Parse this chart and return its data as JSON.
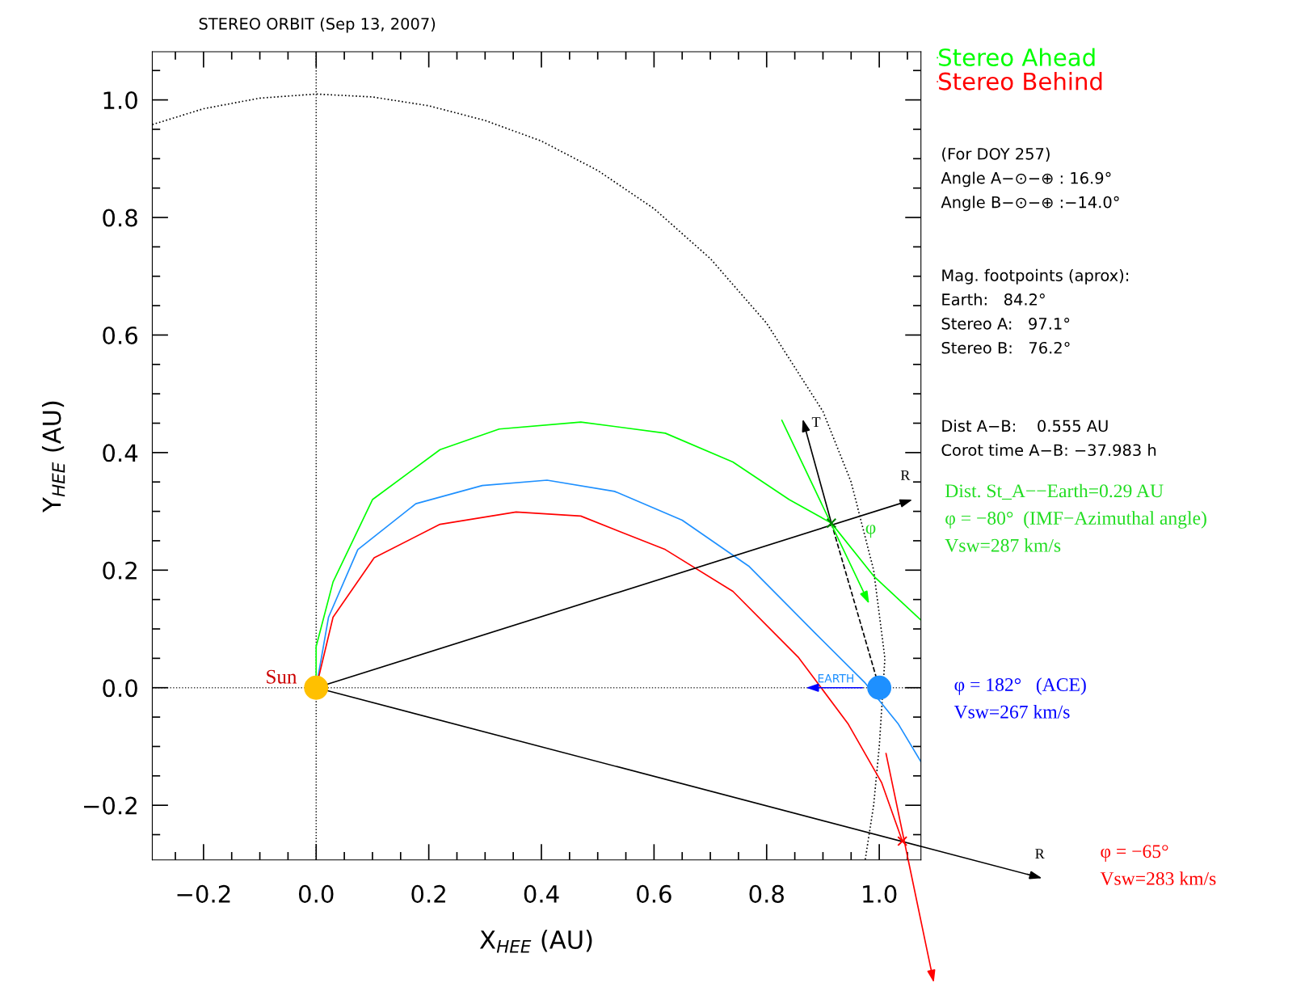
{
  "chart_data": {
    "type": "line",
    "title": "STEREO ORBIT (Sep 13, 2007)",
    "xlabel": "X$_{HEE}$ (AU)",
    "ylabel": "Y$_{HEE}$ (AU)",
    "xlim": [
      -0.291,
      1.074
    ],
    "ylim": [
      -0.293,
      1.082
    ],
    "xticks": [
      {
        "value": -0.2,
        "label": "−0.2"
      },
      {
        "value": 0,
        "label": "0.0"
      },
      0.2,
      0.4,
      0.6,
      0.8,
      {
        "value": 1,
        "label": "1.0"
      }
    ],
    "yticks": [
      {
        "value": -0.2,
        "label": "−0.2"
      },
      {
        "value": 0,
        "label": "0.0"
      },
      0.2,
      0.4,
      0.6,
      0.8,
      {
        "value": 1,
        "label": "1.0"
      }
    ],
    "grid": false,
    "legend": "top right",
    "ref_lines": [
      {
        "axis": "x",
        "value": 0.0,
        "color": "#000000",
        "line_style": "dotted"
      },
      {
        "axis": "y",
        "value": 0.0,
        "color": "#404040",
        "line_style": "dotted"
      }
    ],
    "series": [
      {
        "color": "#000000",
        "line_style": "dotted",
        "x": [
          -0.291,
          -0.2,
          -0.1,
          0.0,
          0.1,
          0.2,
          0.3,
          0.4,
          0.5,
          0.6,
          0.7,
          0.8,
          0.9,
          0.95,
          0.99,
          1.01,
          1.0,
          0.99,
          0.975
        ],
        "values": [
          0.958,
          0.985,
          1.003,
          1.01,
          1.005,
          0.99,
          0.965,
          0.93,
          0.88,
          0.815,
          0.73,
          0.62,
          0.47,
          0.35,
          0.2,
          0.05,
          -0.1,
          -0.2,
          -0.293
        ]
      },
      {
        "name": "Stereo Ahead",
        "color": "#00ff00",
        "x": [
          0.0,
          0.0,
          0.03,
          0.1,
          0.22,
          0.325,
          0.47,
          0.62,
          0.74,
          0.84,
          0.915,
          0.99,
          1.074
        ],
        "values": [
          0.0,
          0.07,
          0.18,
          0.32,
          0.405,
          0.44,
          0.452,
          0.433,
          0.384,
          0.32,
          0.28,
          0.19,
          0.115
        ]
      },
      {
        "color": "#1e90ff",
        "x": [
          0.0,
          0.022,
          0.074,
          0.177,
          0.295,
          0.41,
          0.53,
          0.65,
          0.768,
          0.886,
          0.975,
          1.034,
          1.074
        ],
        "values": [
          0.0,
          0.12,
          0.235,
          0.313,
          0.344,
          0.353,
          0.334,
          0.285,
          0.207,
          0.093,
          0.008,
          -0.062,
          -0.126
        ]
      },
      {
        "name": "Stereo Behind",
        "color": "#ff0000",
        "x": [
          0.0,
          0.03,
          0.103,
          0.22,
          0.355,
          0.47,
          0.62,
          0.74,
          0.857,
          0.945,
          1.004,
          1.041
        ],
        "values": [
          0.0,
          0.12,
          0.221,
          0.278,
          0.299,
          0.292,
          0.235,
          0.164,
          0.051,
          -0.062,
          -0.161,
          -0.261
        ]
      },
      {
        "color": "#000000",
        "x": [
          0.0,
          1.059
        ],
        "values": [
          0.0,
          0.32
        ]
      },
      {
        "color": "#000000",
        "x": [
          0.0,
          1.074
        ],
        "values": [
          0.0,
          -0.27
        ]
      },
      {
        "color": "#000000",
        "x": [
          0.915,
          0.864
        ],
        "values": [
          0.28,
          0.457
        ]
      },
      {
        "color": "#00ff00",
        "x": [
          0.827,
          0.982
        ],
        "values": [
          0.455,
          0.143
        ]
      },
      {
        "color": "#000000",
        "line_style": "dashed",
        "x": [
          0.915,
          1.0
        ],
        "values": [
          0.28,
          0.0
        ]
      },
      {
        "color": "#ff0000",
        "x": [
          1.012,
          1.0514
        ],
        "values": [
          -0.112,
          -0.293
        ]
      },
      {
        "color": "#0000ff",
        "x": [
          0.97,
          0.87
        ],
        "values": [
          0.0,
          0.0
        ]
      },
      {
        "type": "scatter",
        "marker": "circle",
        "color": "#ffc000",
        "x": [
          0.0
        ],
        "values": [
          0.0
        ]
      },
      {
        "type": "scatter",
        "marker": "circle",
        "color": "#1e90ff",
        "x": [
          1.0
        ],
        "values": [
          0.0
        ]
      },
      {
        "type": "scatter",
        "marker": "cross",
        "color": "#008000",
        "x": [
          0.915
        ],
        "values": [
          0.28
        ]
      },
      {
        "type": "scatter",
        "marker": "cross",
        "color": "#ff0000",
        "x": [
          1.041
        ],
        "values": [
          -0.261
        ]
      }
    ],
    "annotations": [
      "(For DOY 257)\nAngle A−⊙−⊕ : 16.9°\nAngle B−⊙−⊕ :−14.0°",
      "Mag. footpoints (aprox):\nEarth:   84.2°\nStereo A:   97.1°\nStereo B:   76.2°",
      "Dist A−B:    0.555 AU\nCorot time A−B: −37.983 h",
      "Dist. St_A−−Earth=0.29 AU\nφ = −80°  (IMF−Azimuthal angle)\nVsw=287 km/s",
      "φ = 182°   (ACE)\nVsw=267 km/s",
      "φ = −65°\nVsw=283 km/s",
      {
        "text": "Sun",
        "x": -0.09,
        "y": 0.0
      },
      {
        "text": "EARTH",
        "x": 0.89,
        "y": 0.005
      },
      "T",
      "R",
      "R",
      {
        "text": "φ",
        "x": 0.975,
        "y": 0.255
      }
    ]
  }
}
